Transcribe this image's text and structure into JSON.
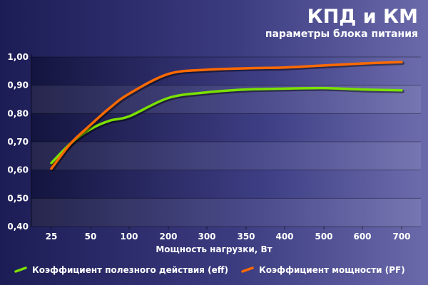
{
  "chart_data": {
    "type": "line",
    "title": "КПД и КМ",
    "subtitle": "параметры блока питания",
    "xlabel": "Мощность нагрузки, Вт",
    "ylabel": "",
    "categories": [
      "25",
      "50",
      "100",
      "200",
      "300",
      "350",
      "400",
      "500",
      "600",
      "700"
    ],
    "y_ticks": [
      "0,40",
      "0,50",
      "0,60",
      "0,70",
      "0,80",
      "0,90",
      "1,00"
    ],
    "ylim": [
      0.4,
      1.0
    ],
    "grid": "alternating horizontal bands",
    "legend_position": "bottom",
    "series": [
      {
        "name": "Коэффициент полезного действия (eff)",
        "color": "#7be000",
        "x": [
          25,
          37.5,
          50,
          75,
          100,
          200,
          300,
          350,
          400,
          500,
          600,
          700
        ],
        "values": [
          0.625,
          0.695,
          0.745,
          0.775,
          0.79,
          0.855,
          0.875,
          0.885,
          0.888,
          0.89,
          0.885,
          0.882
        ]
      },
      {
        "name": "Коэффициент мощности (PF)",
        "color": "#ff6a00",
        "x": [
          25,
          37.5,
          50,
          75,
          100,
          200,
          300,
          350,
          400,
          500,
          600,
          700
        ],
        "values": [
          0.605,
          0.695,
          0.76,
          0.82,
          0.87,
          0.94,
          0.955,
          0.96,
          0.963,
          0.97,
          0.977,
          0.982
        ]
      }
    ]
  }
}
